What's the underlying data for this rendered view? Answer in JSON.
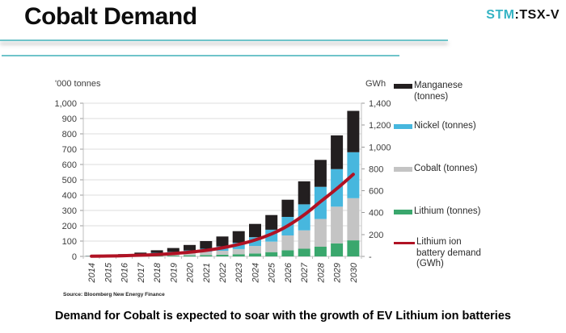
{
  "header": {
    "title": "Cobalt Demand",
    "ticker": {
      "primary": "STM",
      "secondary": ":TSX-V"
    }
  },
  "chart_data": {
    "type": "bar",
    "subtype": "stacked-bars-with-line-overlay",
    "title": "Cobalt Demand",
    "categories": [
      "2014",
      "2015",
      "2016",
      "2017",
      "2018",
      "2019",
      "2020",
      "2021",
      "2022",
      "2023",
      "2024",
      "2025",
      "2026",
      "2027",
      "2028",
      "2029",
      "2030"
    ],
    "left_axis": {
      "label": "'000 tonnes",
      "min": 0,
      "max": 1000,
      "step": 100
    },
    "right_axis": {
      "label": "GWh",
      "min": 0,
      "max": 1400,
      "step": 200,
      "zero_label": "-"
    },
    "grid": true,
    "legend_position": "right",
    "series": [
      {
        "name": "Lithium (tonnes)",
        "kind": "bar",
        "color": "#3aa76d",
        "values": [
          1,
          1,
          2,
          3,
          4,
          5,
          7,
          9,
          11,
          14,
          19,
          28,
          40,
          50,
          63,
          85,
          105
        ]
      },
      {
        "name": "Cobalt (tonnes)",
        "kind": "bar",
        "color": "#c4c4c4",
        "values": [
          2,
          3,
          5,
          7,
          11,
          14,
          17,
          21,
          26,
          34,
          49,
          68,
          97,
          120,
          181,
          240,
          275
        ]
      },
      {
        "name": "Nickel (tonnes)",
        "kind": "bar",
        "color": "#47b7de",
        "values": [
          1,
          2,
          3,
          5,
          8,
          11,
          15,
          20,
          28,
          42,
          57,
          78,
          121,
          170,
          210,
          245,
          300
        ]
      },
      {
        "name": "Manganese (tonnes)",
        "kind": "bar",
        "color": "#231f20",
        "values": [
          1,
          3,
          5,
          10,
          17,
          25,
          36,
          50,
          65,
          75,
          87,
          96,
          112,
          150,
          176,
          220,
          270
        ]
      },
      {
        "name": "Lithium ion battery demand (GWh)",
        "kind": "line",
        "axis": "right",
        "color": "#b01224",
        "values": [
          2,
          4,
          7,
          11,
          17,
          26,
          38,
          55,
          78,
          110,
          150,
          205,
          280,
          380,
          500,
          620,
          750
        ]
      }
    ]
  },
  "legend": {
    "items": [
      {
        "label": "Manganese\n(tonnes)",
        "color": "#231f20",
        "kind": "bar"
      },
      {
        "label": "Nickel (tonnes)",
        "color": "#47b7de",
        "kind": "bar"
      },
      {
        "label": "Cobalt (tonnes)",
        "color": "#c4c4c4",
        "kind": "bar"
      },
      {
        "label": "Lithium (tonnes)",
        "color": "#3aa76d",
        "kind": "bar"
      },
      {
        "label": "Lithium ion\nbattery demand\n(GWh)",
        "color": "#b01224",
        "kind": "line"
      }
    ]
  },
  "source_note": "Source: Bloomberg New Energy Finance",
  "caption": "Demand for Cobalt is expected to soar with the growth of EV Lithium ion batteries",
  "colors": {
    "accent_teal": "#6fc4ca",
    "ticker_teal": "#35b4c4",
    "line_red": "#b01224",
    "grid": "#dcdcdc",
    "axis": "#bfbfbf"
  }
}
